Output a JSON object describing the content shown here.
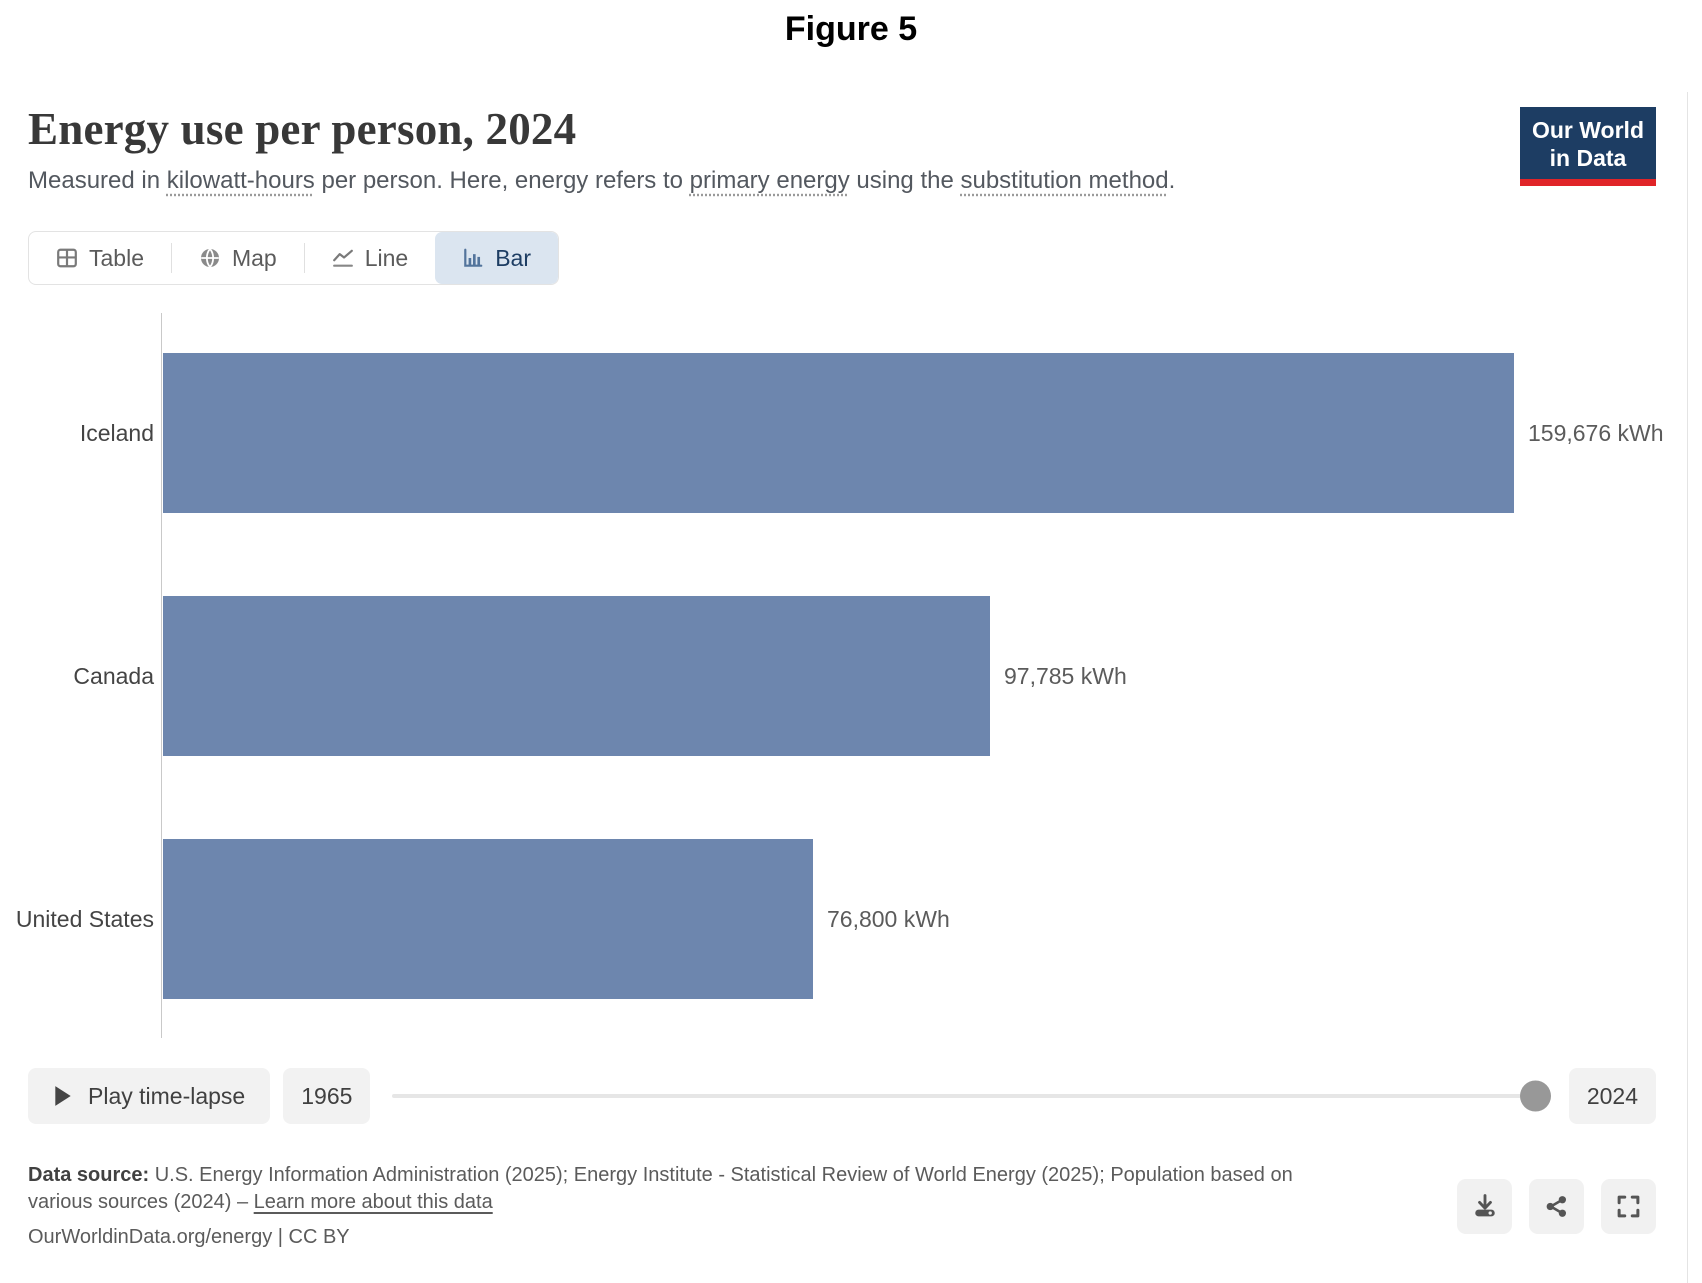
{
  "figure_label": "Figure 5",
  "header": {
    "title": "Energy use per person, 2024",
    "subtitle": {
      "p1": "Measured in ",
      "t1": "kilowatt-hours",
      "p2": " per person. Here, energy refers to ",
      "t2": "primary energy",
      "p3": " using the ",
      "t3": "substitution method",
      "p4": "."
    }
  },
  "logo": {
    "line1": "Our World",
    "line2": "in Data",
    "bg_color": "#1d3d63",
    "accent_color": "#e02428"
  },
  "tabs": [
    {
      "label": "Table",
      "icon": "table-icon",
      "active": false
    },
    {
      "label": "Map",
      "icon": "globe-icon",
      "active": false
    },
    {
      "label": "Line",
      "icon": "line-chart-icon",
      "active": false
    },
    {
      "label": "Bar",
      "icon": "bar-chart-icon",
      "active": true
    }
  ],
  "chart_data": {
    "type": "bar",
    "orientation": "horizontal",
    "title": "Energy use per person, 2024",
    "subtitle": "Measured in kilowatt-hours per person. Here, energy refers to primary energy using the substitution method.",
    "year": 2024,
    "unit": "kWh",
    "categories": [
      "Iceland",
      "Canada",
      "United States"
    ],
    "values": [
      159676,
      97785,
      76800
    ],
    "value_labels": [
      "159,676 kWh",
      "97,785 kWh",
      "76,800 kWh"
    ],
    "xlim": [
      0,
      159676
    ],
    "bar_color": "#6d86ae",
    "grid": false,
    "legend": "none"
  },
  "timeline": {
    "play_label": "Play time-lapse",
    "start_year": "1965",
    "end_year": "2024",
    "handle_position": "end"
  },
  "footer": {
    "source_bold": "Data source:",
    "source_text": " U.S. Energy Information Administration (2025); Energy Institute - Statistical Review of World Energy (2025); Population based on various sources (2024) – ",
    "learn_more": "Learn more about this data",
    "license_url": "OurWorldinData.org/energy",
    "license_sep": " | ",
    "license_cc": "CC BY"
  },
  "icons": {
    "tab_icons": [
      "table-icon",
      "globe-icon",
      "line-chart-icon",
      "bar-chart-icon"
    ],
    "play": "play-icon",
    "actions": [
      "download-icon",
      "share-icon",
      "fullscreen-icon"
    ]
  }
}
